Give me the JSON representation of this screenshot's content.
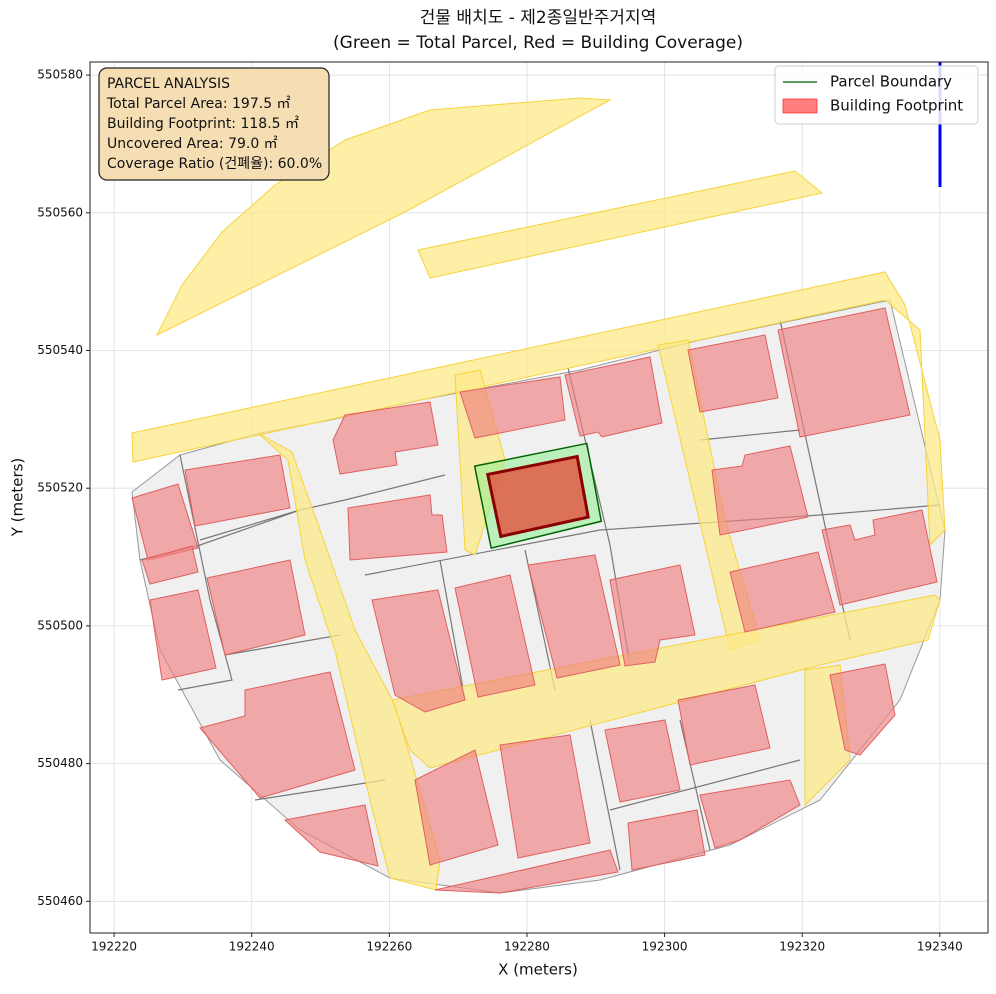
{
  "chart_data": {
    "type": "map",
    "title": "건물 배치도 - 제2종일반주거지역",
    "subtitle": "(Green = Total Parcel, Red = Building Coverage)",
    "x_label": "X (meters)",
    "y_label": "Y (meters)",
    "xlim": [
      192216.5,
      192347
    ],
    "ylim": [
      550455.4,
      550581.9
    ],
    "xticks": [
      192220,
      192240,
      192260,
      192280,
      192300,
      192320,
      192340
    ],
    "yticks": [
      550460,
      550480,
      550500,
      550520,
      550540,
      550560,
      550580
    ],
    "grid": true,
    "legend_loc": "upper right",
    "series": [
      {
        "name": "Parcel Boundary",
        "color": "#006400",
        "fill": "#90ee90",
        "x": [
          192272.4,
          192288.7,
          192290.8,
          192274.8
        ],
        "y": [
          550523.2,
          550526.5,
          550515.2,
          550511.3
        ]
      },
      {
        "name": "Building Footprint",
        "color": "#8b0000",
        "fill": "#e05a45",
        "x": [
          192274.3,
          192287.3,
          192288.9,
          192276.2
        ],
        "y": [
          550522.0,
          550524.6,
          550515.8,
          550513.0
        ]
      }
    ],
    "info_box": {
      "title": "PARCEL ANALYSIS",
      "lines": [
        "Total Parcel Area: 197.5 ㎡",
        "Building Footprint: 118.5 ㎡",
        "Uncovered Area: 79.0 ㎡",
        "Coverage Ratio (건폐율): 60.0%"
      ]
    }
  }
}
